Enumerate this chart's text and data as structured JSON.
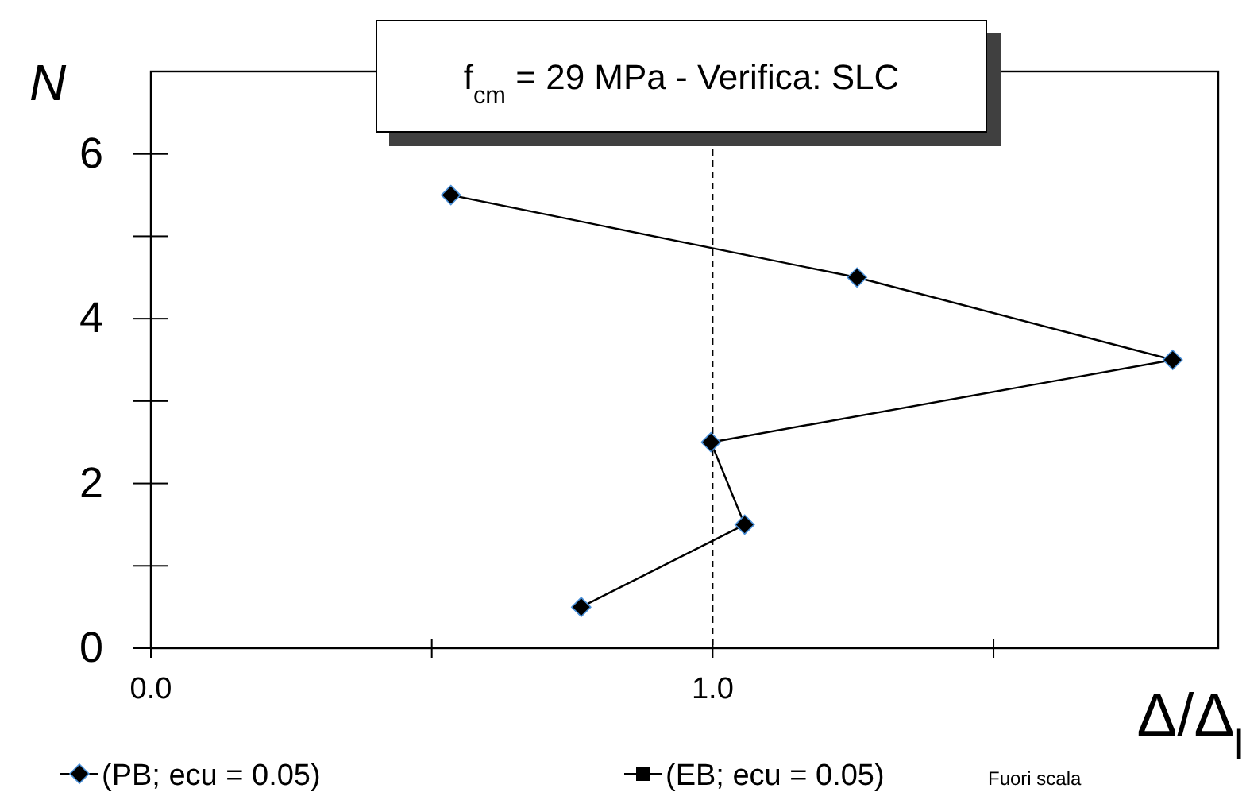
{
  "chart_data": {
    "type": "line",
    "title": "f$_{cm}$ = 29 MPa - Verifica: SLC",
    "xlabel": "Δ/Δ$_{l}$",
    "ylabel": "N",
    "xlim": [
      0,
      1.9
    ],
    "xticks": [
      {
        "value": 0,
        "label": "0.0"
      },
      {
        "value": 0.5,
        "label": null
      },
      {
        "value": 1,
        "label": "1.0"
      },
      {
        "value": 1.5,
        "label": null
      }
    ],
    "ylim": [
      0,
      7
    ],
    "yticks": [
      0,
      {
        "value": 1,
        "label": null
      },
      2,
      {
        "value": 3,
        "label": null
      },
      4,
      {
        "value": 5,
        "label": null
      },
      6
    ],
    "series": [
      {
        "name": "(PB; ecu = 0.05)",
        "color": "#000000",
        "marker": "diamond",
        "x": [
          0.534,
          1.257,
          1.819,
          0.997,
          1.057,
          0.766
        ],
        "values": [
          5.5,
          4.5,
          3.5,
          2.5,
          1.5,
          0.5
        ]
      },
      {
        "name": "(EB; ecu = 0.05)",
        "color": "#000000",
        "marker": "square"
      }
    ],
    "ref_lines": [
      {
        "axis": "x",
        "value": 1,
        "line_style": "dashed",
        "color": "#000000"
      }
    ],
    "annotations": [
      "Fuori scala"
    ],
    "legend": "bottom",
    "grid": false
  }
}
